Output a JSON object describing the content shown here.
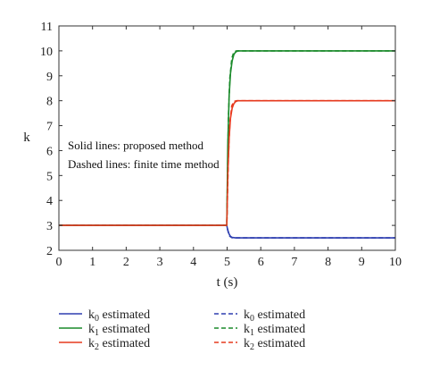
{
  "chart_data": {
    "type": "line",
    "xlabel": "t (s)",
    "ylabel": "k",
    "xlim": [
      0,
      10
    ],
    "ylim": [
      2,
      11
    ],
    "xticks": [
      0,
      1,
      2,
      3,
      4,
      5,
      6,
      7,
      8,
      9,
      10
    ],
    "yticks": [
      2,
      3,
      4,
      5,
      6,
      7,
      8,
      9,
      10,
      11
    ],
    "grid": false,
    "legend_position": "bottom",
    "annotations": [
      "Solid lines: proposed method",
      "Dashed lines: finite time method"
    ],
    "series": [
      {
        "name": "k0 estimated",
        "method": "proposed",
        "style": "solid",
        "color": "#2e3fb0",
        "x": [
          0,
          4.99,
          5.02,
          5.06,
          5.1,
          5.15,
          5.2,
          5.25,
          5.35,
          5.5,
          10
        ],
        "y": [
          3,
          3,
          2.8,
          2.65,
          2.56,
          2.52,
          2.51,
          2.5,
          2.5,
          2.5,
          2.5
        ]
      },
      {
        "name": "k1 estimated",
        "method": "proposed",
        "style": "solid",
        "color": "#1a8a2a",
        "x": [
          0,
          4.99,
          5.02,
          5.06,
          5.1,
          5.15,
          5.2,
          5.25,
          5.32,
          5.45,
          10
        ],
        "y": [
          3,
          3,
          6.2,
          8.2,
          9.1,
          9.6,
          9.85,
          9.95,
          10.0,
          10.0,
          10.0
        ]
      },
      {
        "name": "k2 estimated",
        "method": "proposed",
        "style": "solid",
        "color": "#e63a1e",
        "x": [
          0,
          4.99,
          5.02,
          5.06,
          5.1,
          5.15,
          5.2,
          5.25,
          5.32,
          5.45,
          10
        ],
        "y": [
          3,
          3,
          5.0,
          6.5,
          7.3,
          7.7,
          7.88,
          7.96,
          8.0,
          8.0,
          8.0
        ]
      },
      {
        "name": "k0 estimated",
        "method": "finite time",
        "style": "dashed",
        "color": "#2e3fb0",
        "x": [
          0,
          4.99,
          5.04,
          5.08,
          5.14,
          5.2,
          5.3,
          10
        ],
        "y": [
          3,
          3,
          2.7,
          2.56,
          2.51,
          2.5,
          2.5,
          2.5
        ]
      },
      {
        "name": "k1 estimated",
        "method": "finite time",
        "style": "dashed",
        "color": "#1a8a2a",
        "x": [
          0,
          4.99,
          5.04,
          5.08,
          5.14,
          5.2,
          5.28,
          10
        ],
        "y": [
          3,
          3,
          7.4,
          8.9,
          9.7,
          9.95,
          10.0,
          10.0
        ]
      },
      {
        "name": "k2 estimated",
        "method": "finite time",
        "style": "dashed",
        "color": "#e63a1e",
        "x": [
          0,
          4.99,
          5.04,
          5.08,
          5.14,
          5.2,
          5.28,
          10
        ],
        "y": [
          3,
          3,
          5.8,
          7.1,
          7.8,
          7.97,
          8.0,
          8.0
        ]
      }
    ]
  }
}
